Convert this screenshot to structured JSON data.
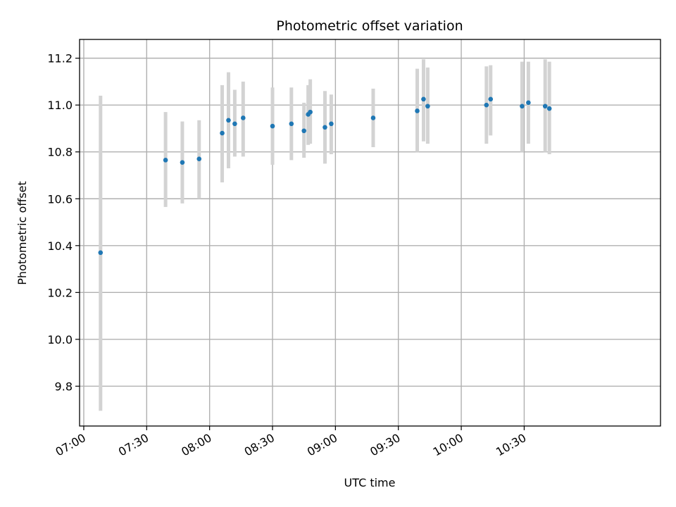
{
  "chart_data": {
    "type": "scatter",
    "title": "Photometric offset variation",
    "xlabel": "UTC time",
    "ylabel": "Photometric offset",
    "x_tick_labels": [
      "07:00",
      "07:30",
      "08:00",
      "08:30",
      "09:00",
      "09:30",
      "10:00",
      "10:30"
    ],
    "y_ticks": [
      9.8,
      10.0,
      10.2,
      10.4,
      10.6,
      10.8,
      11.0,
      11.2
    ],
    "y_tick_labels": [
      "9.8",
      "10.0",
      "10.2",
      "10.4",
      "10.6",
      "10.8",
      "11.0",
      "11.2"
    ],
    "xlim": [
      "06:58",
      "11:35"
    ],
    "ylim": [
      9.63,
      11.28
    ],
    "grid": true,
    "colors": {
      "points": "#1f77b4",
      "error_bars": "#d3d3d3",
      "grid": "#b0b0b0"
    },
    "points": [
      {
        "x": "07:08",
        "y": 10.37,
        "y_low": 9.695,
        "y_high": 11.04
      },
      {
        "x": "07:39",
        "y": 10.765,
        "y_low": 10.565,
        "y_high": 10.97
      },
      {
        "x": "07:47",
        "y": 10.755,
        "y_low": 10.58,
        "y_high": 10.93
      },
      {
        "x": "07:55",
        "y": 10.77,
        "y_low": 10.6,
        "y_high": 10.935
      },
      {
        "x": "08:06",
        "y": 10.88,
        "y_low": 10.67,
        "y_high": 11.085
      },
      {
        "x": "08:09",
        "y": 10.935,
        "y_low": 10.73,
        "y_high": 11.14
      },
      {
        "x": "08:12",
        "y": 10.92,
        "y_low": 10.78,
        "y_high": 11.065
      },
      {
        "x": "08:16",
        "y": 10.945,
        "y_low": 10.78,
        "y_high": 11.1
      },
      {
        "x": "08:30",
        "y": 10.91,
        "y_low": 10.745,
        "y_high": 11.075
      },
      {
        "x": "08:39",
        "y": 10.92,
        "y_low": 10.765,
        "y_high": 11.075
      },
      {
        "x": "08:45",
        "y": 10.89,
        "y_low": 10.775,
        "y_high": 11.01
      },
      {
        "x": "08:47",
        "y": 10.96,
        "y_low": 10.83,
        "y_high": 11.085
      },
      {
        "x": "08:48",
        "y": 10.97,
        "y_low": 10.835,
        "y_high": 11.11
      },
      {
        "x": "08:55",
        "y": 10.905,
        "y_low": 10.75,
        "y_high": 11.06
      },
      {
        "x": "08:58",
        "y": 10.92,
        "y_low": 10.79,
        "y_high": 11.045
      },
      {
        "x": "09:18",
        "y": 10.945,
        "y_low": 10.82,
        "y_high": 11.07
      },
      {
        "x": "09:39",
        "y": 10.975,
        "y_low": 10.8,
        "y_high": 11.155
      },
      {
        "x": "09:42",
        "y": 11.025,
        "y_low": 10.845,
        "y_high": 11.195
      },
      {
        "x": "09:44",
        "y": 10.995,
        "y_low": 10.835,
        "y_high": 11.16
      },
      {
        "x": "10:12",
        "y": 11.0,
        "y_low": 10.835,
        "y_high": 11.165
      },
      {
        "x": "10:14",
        "y": 11.025,
        "y_low": 10.87,
        "y_high": 11.17
      },
      {
        "x": "10:29",
        "y": 10.995,
        "y_low": 10.8,
        "y_high": 11.185
      },
      {
        "x": "10:32",
        "y": 11.01,
        "y_low": 10.835,
        "y_high": 11.185
      },
      {
        "x": "10:40",
        "y": 10.995,
        "y_low": 10.8,
        "y_high": 11.195
      },
      {
        "x": "10:42",
        "y": 10.985,
        "y_low": 10.79,
        "y_high": 11.185
      }
    ]
  }
}
